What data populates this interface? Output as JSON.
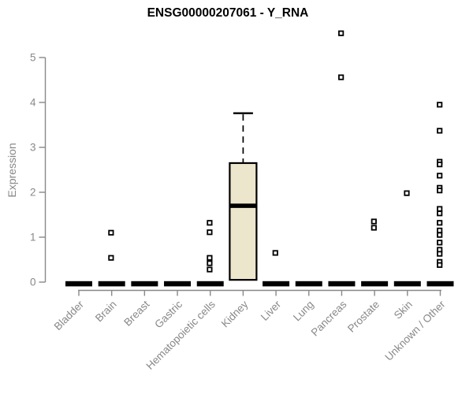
{
  "chart_data": {
    "type": "boxplot",
    "title": "ENSG00000207061 - Y_RNA",
    "ylabel": "Expression",
    "xlabel": "",
    "ylim": [
      0,
      5.6
    ],
    "yticks": [
      0,
      1,
      2,
      3,
      4,
      5
    ],
    "grid": false,
    "legend": null,
    "colors": {
      "box_fill": "#ECE6CD",
      "box_stroke": "#000000",
      "axis": "#888888",
      "tick_label": "#888888",
      "title": "#000000",
      "outlier_fill": "#ffffff",
      "outlier_stroke": "#000000"
    },
    "categories": [
      "Bladder",
      "Brain",
      "Breast",
      "Gastric",
      "Hematopoietic cells",
      "Kidney",
      "Liver",
      "Lung",
      "Pancreas",
      "Prostate",
      "Skin",
      "Unknown / Other"
    ],
    "boxes": [
      {
        "category": "Bladder",
        "whisker_low": 0,
        "q1": 0,
        "median": 0,
        "q3": 0,
        "whisker_high": 0,
        "outliers": []
      },
      {
        "category": "Brain",
        "whisker_low": 0,
        "q1": 0,
        "median": 0,
        "q3": 0,
        "whisker_high": 0,
        "outliers": [
          1.1,
          0.54
        ]
      },
      {
        "category": "Breast",
        "whisker_low": 0,
        "q1": 0,
        "median": 0,
        "q3": 0,
        "whisker_high": 0,
        "outliers": []
      },
      {
        "category": "Gastric",
        "whisker_low": 0,
        "q1": 0,
        "median": 0,
        "q3": 0,
        "whisker_high": 0,
        "outliers": []
      },
      {
        "category": "Hematopoietic cells",
        "whisker_low": 0,
        "q1": 0,
        "median": 0,
        "q3": 0,
        "whisker_high": 0,
        "outliers": [
          1.32,
          1.11,
          0.54,
          0.42,
          0.28
        ]
      },
      {
        "category": "Kidney",
        "whisker_low": 0.05,
        "q1": 0.05,
        "median": 1.7,
        "q3": 2.65,
        "whisker_high": 3.76,
        "outliers": []
      },
      {
        "category": "Liver",
        "whisker_low": 0,
        "q1": 0,
        "median": 0,
        "q3": 0,
        "whisker_high": 0,
        "outliers": [
          0.65
        ]
      },
      {
        "category": "Lung",
        "whisker_low": 0,
        "q1": 0,
        "median": 0,
        "q3": 0,
        "whisker_high": 0,
        "outliers": []
      },
      {
        "category": "Pancreas",
        "whisker_low": 0,
        "q1": 0,
        "median": 0,
        "q3": 0,
        "whisker_high": 0,
        "outliers": [
          5.54,
          4.56
        ]
      },
      {
        "category": "Prostate",
        "whisker_low": 0,
        "q1": 0,
        "median": 0,
        "q3": 0,
        "whisker_high": 0,
        "outliers": [
          1.35,
          1.21
        ]
      },
      {
        "category": "Skin",
        "whisker_low": 0,
        "q1": 0,
        "median": 0,
        "q3": 0,
        "whisker_high": 0,
        "outliers": [
          1.98
        ]
      },
      {
        "category": "Unknown / Other",
        "whisker_low": 0,
        "q1": 0,
        "median": 0,
        "q3": 0,
        "whisker_high": 0,
        "outliers": [
          3.95,
          3.37,
          2.68,
          2.62,
          2.37,
          2.1,
          2.04,
          1.63,
          1.53,
          1.32,
          1.15,
          1.05,
          0.88,
          0.72,
          0.63,
          0.45,
          0.38
        ]
      }
    ]
  }
}
